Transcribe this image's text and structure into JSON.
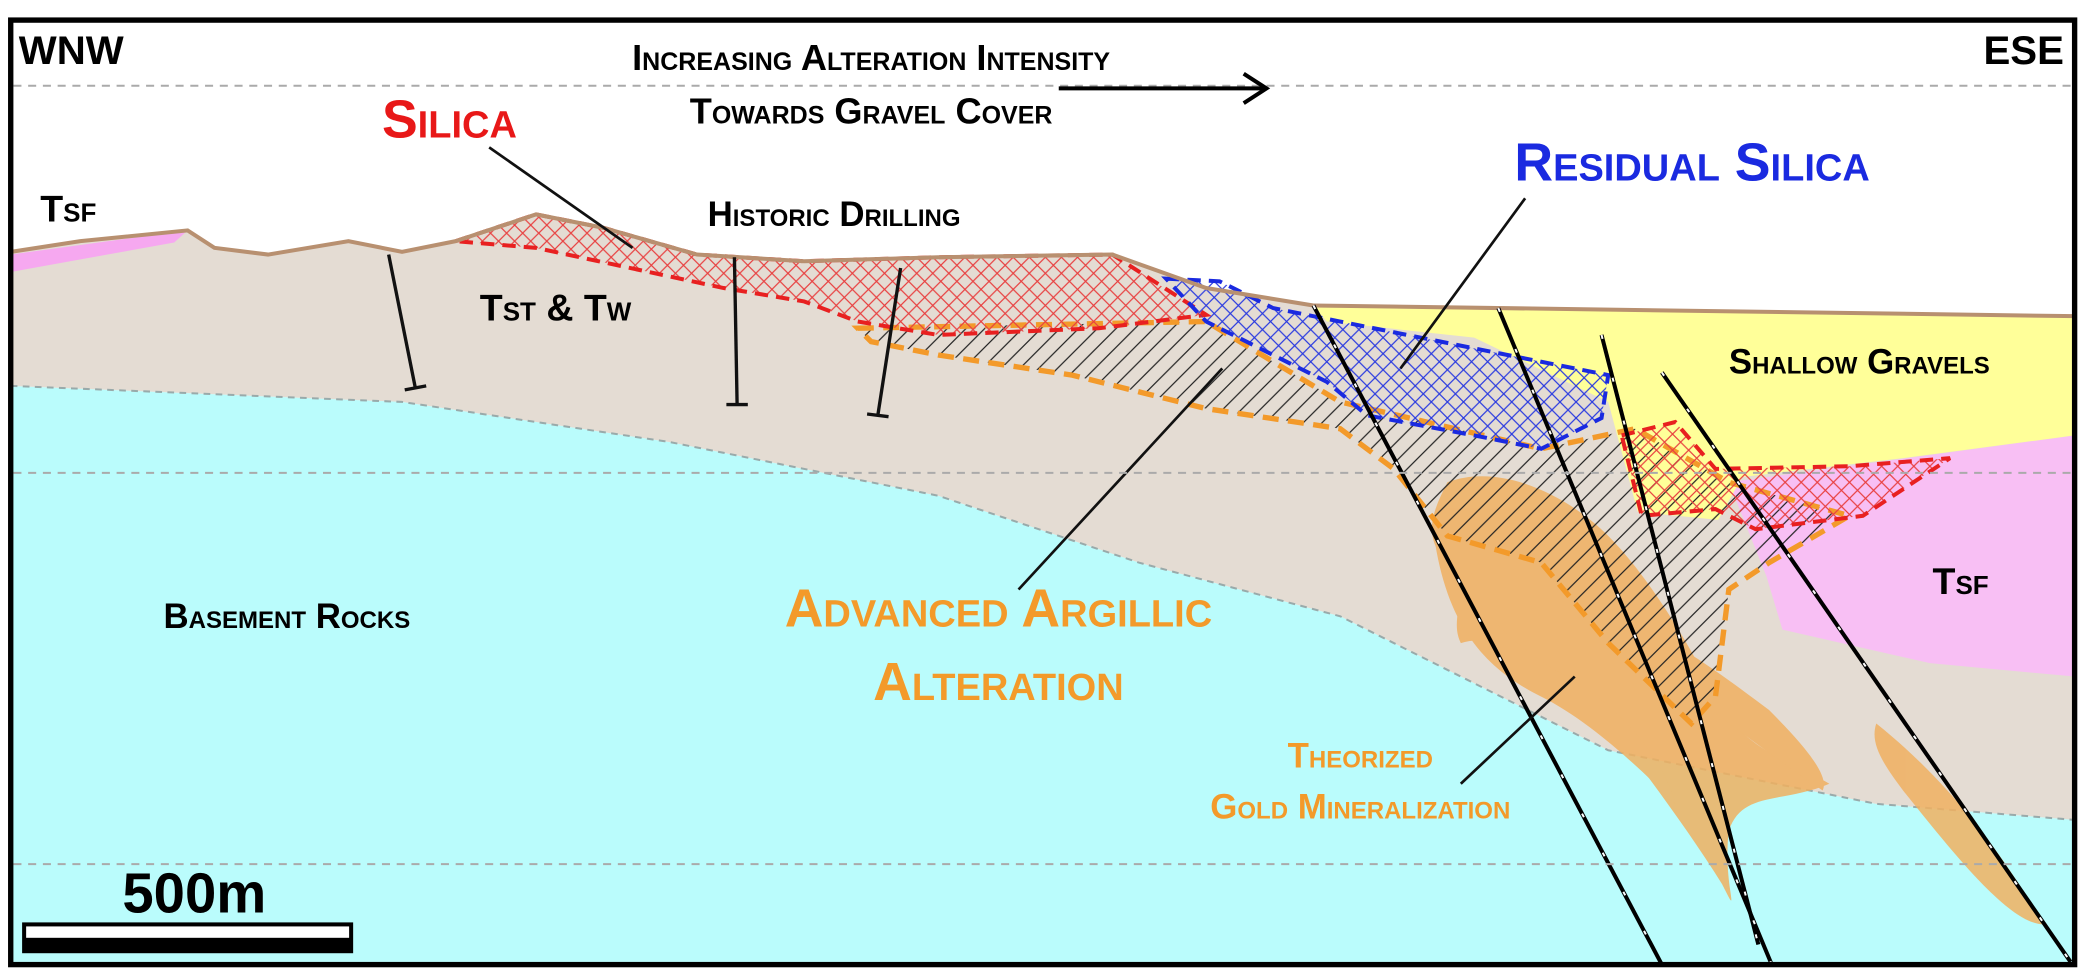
{
  "header": {
    "left": "WNW",
    "right": "ESE",
    "trend": [
      "Increasing Alteration Intensity",
      "Towards Gravel Cover"
    ]
  },
  "units": {
    "silica": "Silica",
    "residual_silica": "Residual Silica",
    "tsf_left": "Tsf",
    "tsf_right": "Tsf",
    "tst_tw": "Tst & Tw",
    "historic_drilling": "Historic Drilling",
    "shallow_gravels": "Shallow Gravels",
    "basement": "Basement Rocks",
    "argillic": [
      "Advanced Argillic",
      "Alteration"
    ],
    "gold": [
      "Theorized",
      "Gold Mineralization"
    ]
  },
  "scale_bar": "500m"
}
